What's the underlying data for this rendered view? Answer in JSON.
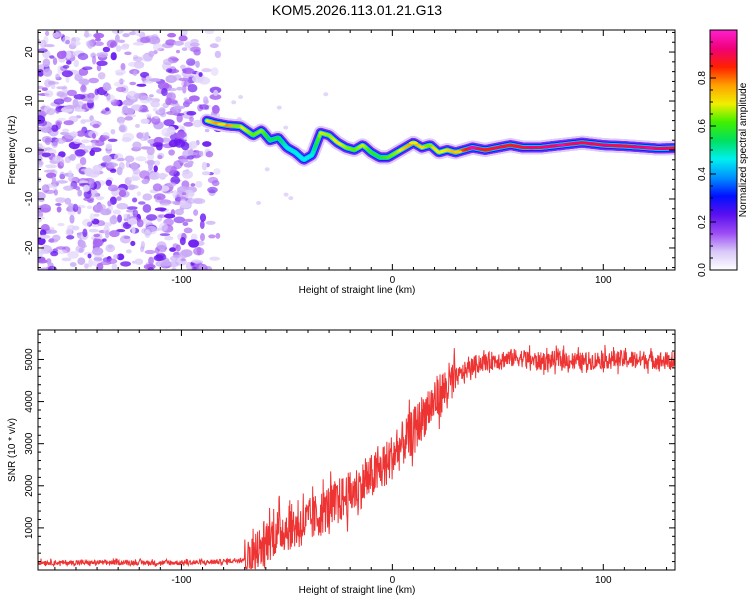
{
  "title": "KOM5.2026.113.01.21.G13",
  "chart_data": [
    {
      "type": "heatmap",
      "title": "KOM5.2026.113.01.21.G13",
      "xlabel": "Height of straight line (km)",
      "ylabel": "Frequency (Hz)",
      "xlim": [
        -168,
        134
      ],
      "ylim": [
        -24.5,
        24.5
      ],
      "xticks": [
        -100,
        0,
        100
      ],
      "yticks": [
        -20,
        -10,
        0,
        10,
        20
      ],
      "colorbar": {
        "label": "Normalized spectral amplitude",
        "range": [
          0,
          1
        ],
        "ticks": [
          0.0,
          0.2,
          0.4,
          0.6,
          0.8
        ],
        "colors": [
          "#ffffff",
          "#d8c8f8",
          "#9c4cf4",
          "#5a10f0",
          "#0010ff",
          "#0090ff",
          "#00f0f0",
          "#00e060",
          "#40f000",
          "#f0f000",
          "#ffa000",
          "#ff2000",
          "#f0007a",
          "#ff20d0"
        ]
      },
      "noise_region_x": [
        -168,
        -80
      ],
      "ridge": {
        "x": [
          -88,
          -84,
          -78,
          -72,
          -66,
          -62,
          -58,
          -54,
          -50,
          -46,
          -42,
          -38,
          -34,
          -30,
          -26,
          -22,
          -18,
          -14,
          -10,
          -6,
          -2,
          2,
          6,
          10,
          14,
          18,
          22,
          26,
          30,
          34,
          38,
          44,
          50,
          56,
          62,
          70,
          80,
          90,
          100,
          110,
          120,
          126,
          134
        ],
        "frequency_hz": [
          6,
          5.5,
          5,
          4.8,
          3,
          4,
          2,
          2.5,
          0.5,
          -0.5,
          -2,
          -1,
          3.5,
          3,
          1.5,
          0.5,
          0,
          1,
          -0.5,
          -1.5,
          -1.5,
          -0.5,
          0.5,
          1.5,
          0.5,
          1,
          -0.5,
          0,
          -0.5,
          0,
          0.5,
          0,
          0.5,
          1,
          0.5,
          0.5,
          1,
          1.5,
          1,
          0.8,
          0.5,
          0.3,
          0.4
        ],
        "amplitude": [
          0.55,
          0.7,
          0.72,
          0.6,
          0.45,
          0.5,
          0.3,
          0.35,
          0.2,
          0.2,
          0.18,
          0.2,
          0.55,
          0.5,
          0.6,
          0.5,
          0.45,
          0.55,
          0.4,
          0.35,
          0.45,
          0.5,
          0.65,
          0.7,
          0.6,
          0.65,
          0.55,
          0.6,
          0.7,
          0.8,
          0.95,
          0.85,
          0.9,
          0.85,
          0.9,
          0.92,
          0.95,
          0.9,
          0.92,
          0.9,
          0.95,
          0.92,
          0.9
        ]
      }
    },
    {
      "type": "line",
      "xlabel": "Height of straight line (km)",
      "ylabel": "SNR (10 * v/v)",
      "xlim": [
        -168,
        134
      ],
      "ylim": [
        0,
        5700
      ],
      "xticks": [
        -100,
        0,
        100
      ],
      "yticks": [
        1000,
        2000,
        3000,
        4000,
        5000
      ],
      "color": "#ee3333",
      "series": [
        {
          "name": "SNR",
          "x": [
            -168,
            -150,
            -130,
            -110,
            -90,
            -80,
            -70,
            -65,
            -60,
            -55,
            -50,
            -45,
            -40,
            -35,
            -30,
            -25,
            -20,
            -15,
            -10,
            -5,
            0,
            5,
            10,
            15,
            20,
            25,
            30,
            35,
            40,
            45,
            50,
            60,
            70,
            80,
            90,
            100,
            110,
            120,
            134
          ],
          "values": [
            180,
            170,
            180,
            170,
            180,
            200,
            260,
            400,
            700,
            900,
            1000,
            1050,
            1150,
            1300,
            1500,
            1650,
            1800,
            2000,
            2200,
            2400,
            2700,
            3000,
            3300,
            3700,
            4000,
            4300,
            4550,
            4750,
            4900,
            4950,
            5000,
            5050,
            4950,
            5000,
            4950,
            5000,
            5000,
            5000,
            4950
          ]
        }
      ]
    }
  ]
}
